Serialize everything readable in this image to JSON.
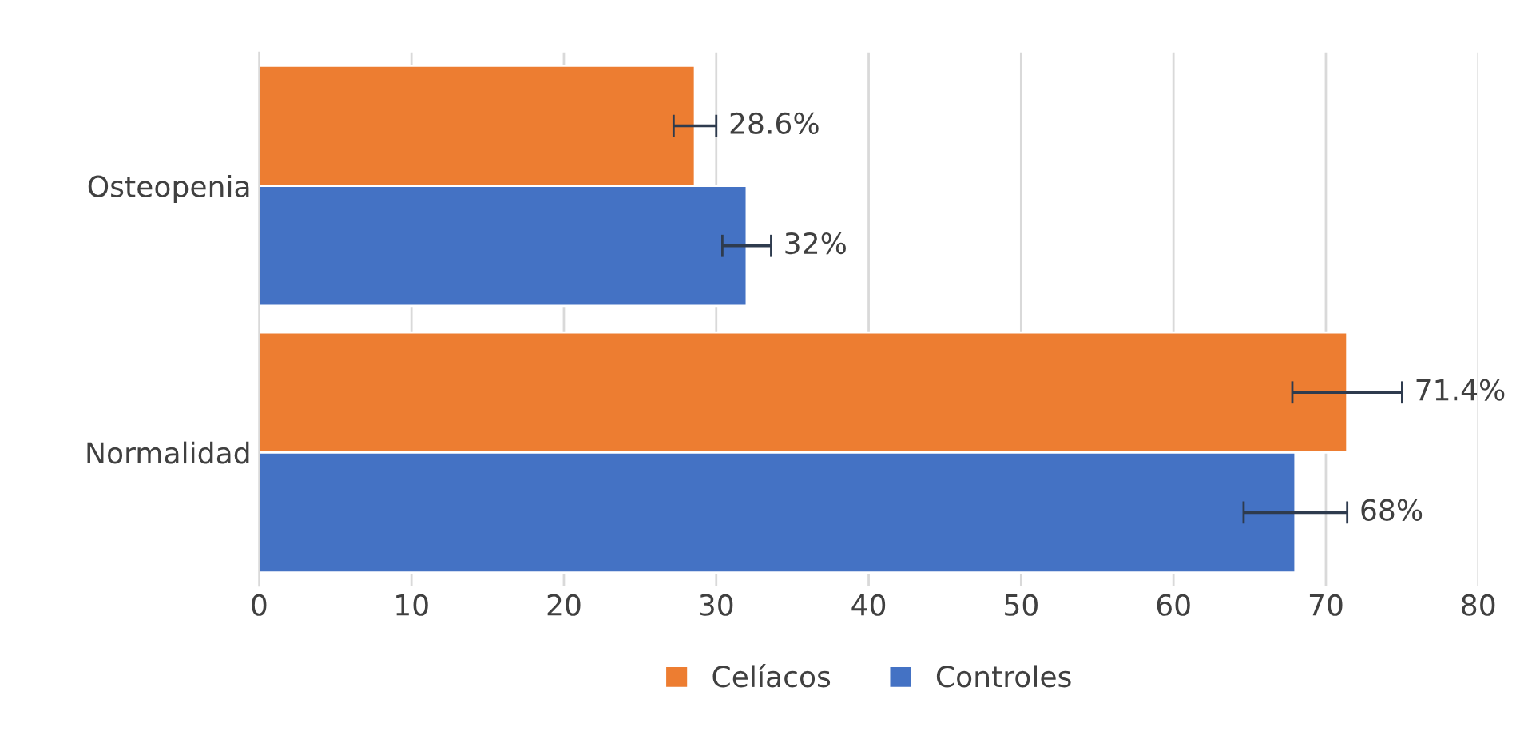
{
  "chart_data": {
    "type": "bar",
    "orientation": "horizontal",
    "categories": [
      "Osteopenia",
      "Normalidad"
    ],
    "series": [
      {
        "name": "Celíacos",
        "color": "#ed7d31",
        "values": [
          28.6,
          71.4
        ],
        "errors": [
          1.4,
          3.6
        ],
        "value_labels": [
          "28.6%",
          "71.4%"
        ]
      },
      {
        "name": "Controles",
        "color": "#4472c4",
        "values": [
          32,
          68
        ],
        "errors": [
          1.6,
          3.4
        ],
        "value_labels": [
          "32%",
          "68%"
        ]
      }
    ],
    "xlim": [
      0,
      80
    ],
    "xticks": [
      0,
      10,
      20,
      30,
      40,
      50,
      60,
      70,
      80
    ],
    "grid": "x",
    "legend": "bottom"
  }
}
